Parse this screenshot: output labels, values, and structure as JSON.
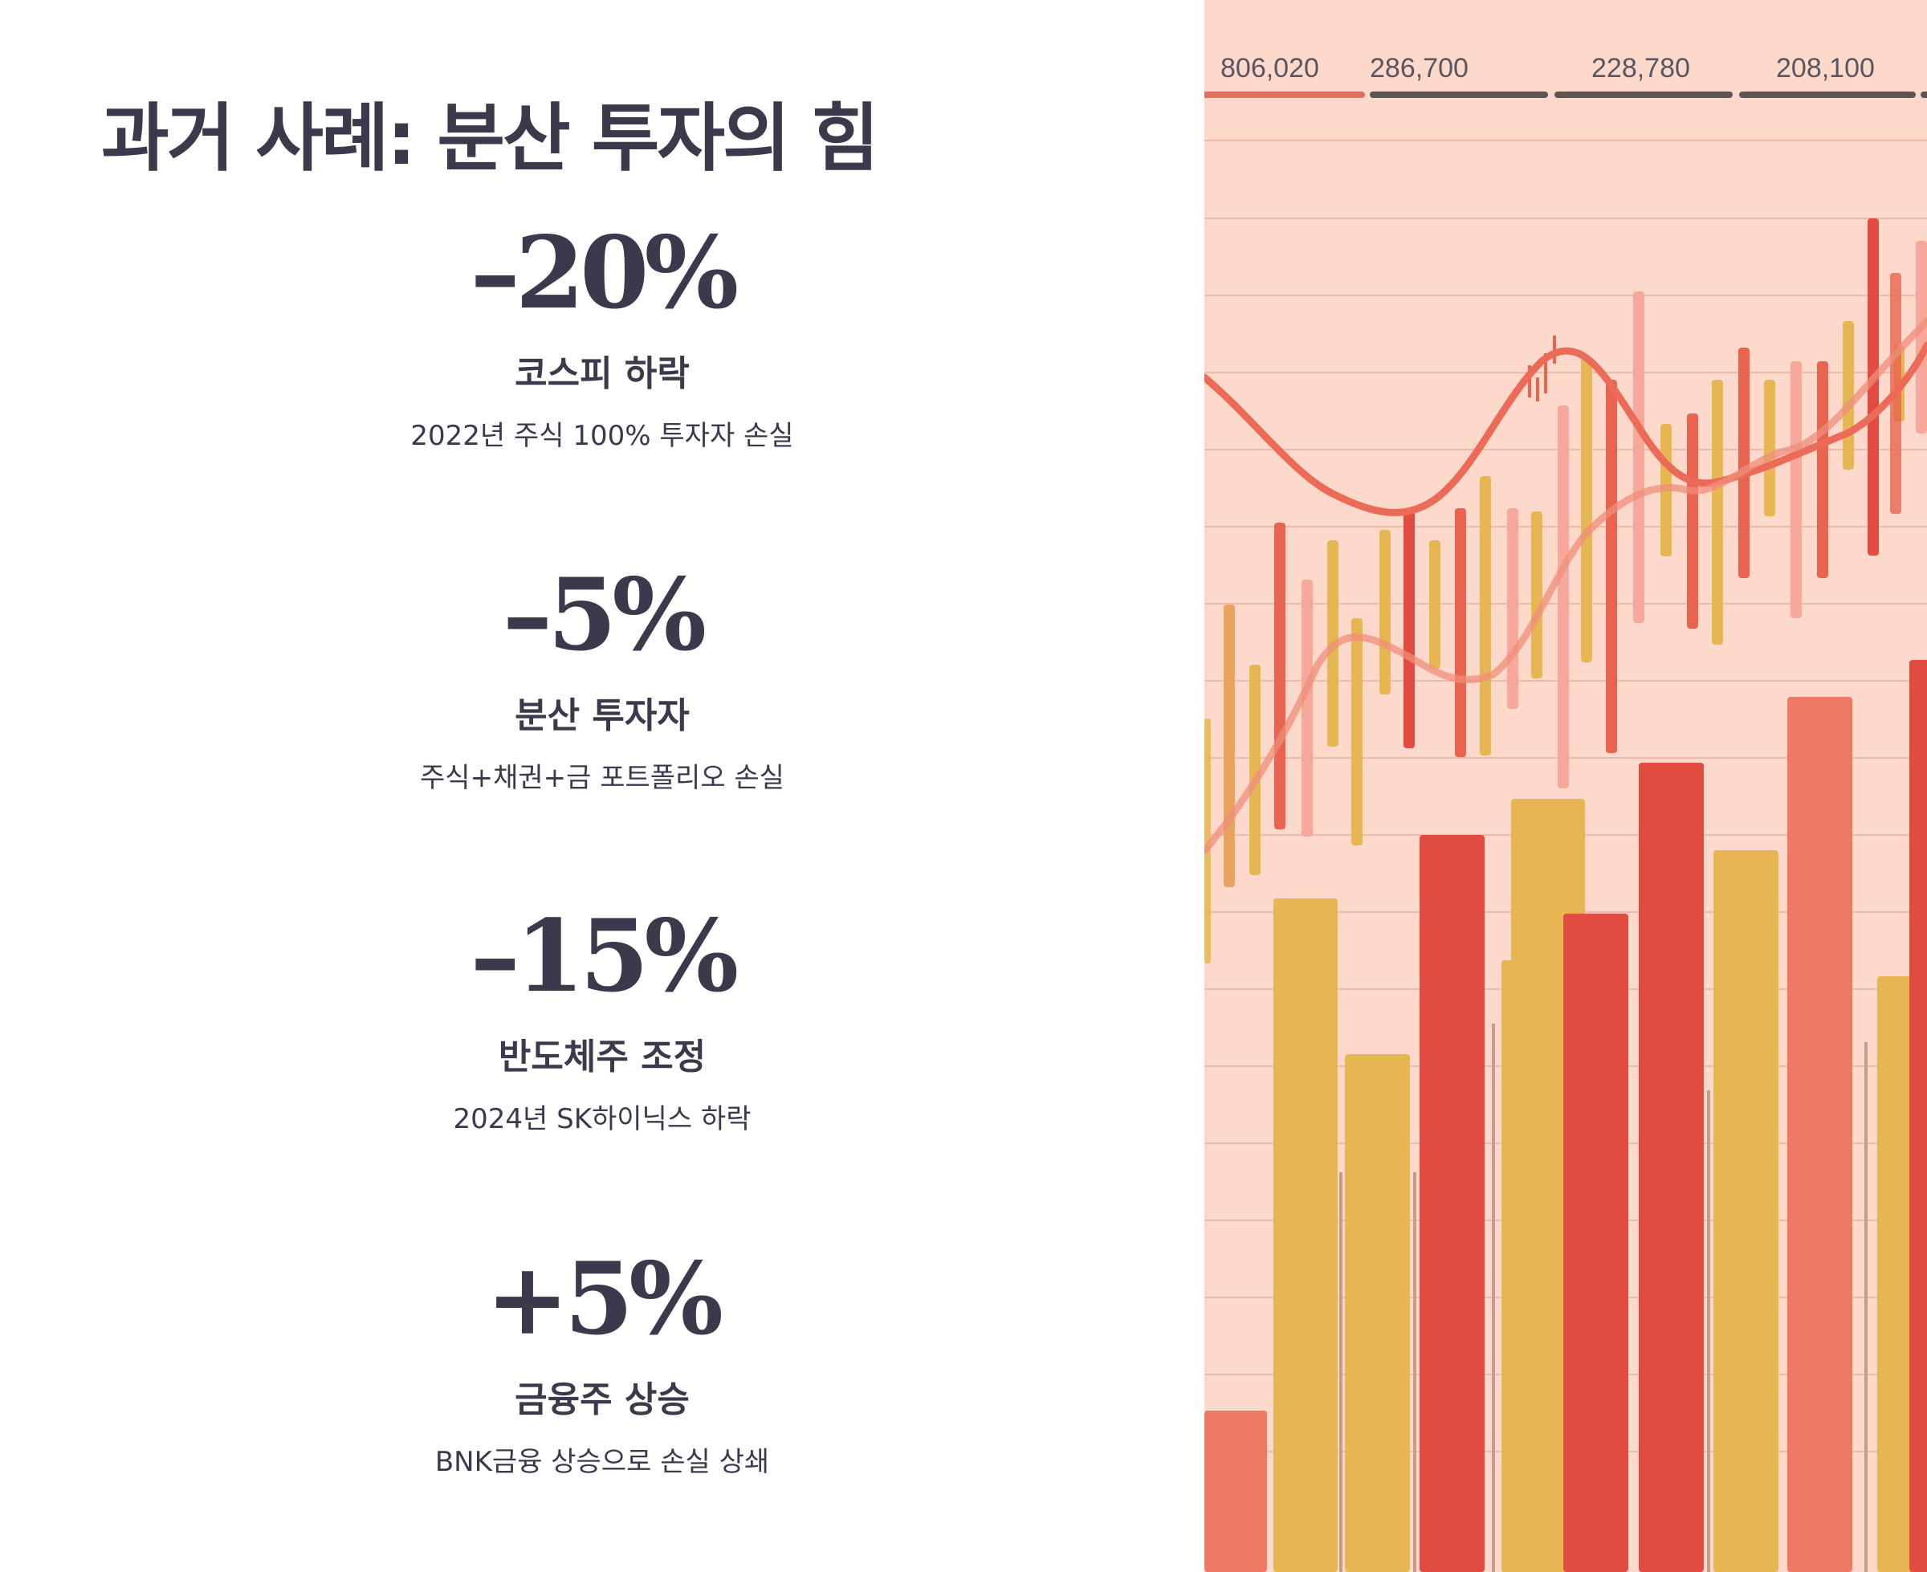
{
  "slide": {
    "title": "과거 사례: 분산 투자의 힘"
  },
  "stats": [
    {
      "value": "–20%",
      "label": "코스피 하락",
      "description": "2022년 주식 100% 투자자 손실"
    },
    {
      "value": "–5%",
      "label": "분산 투자자",
      "description": "주식+채권+금 포트폴리오 손실"
    },
    {
      "value": "–15%",
      "label": "반도체주 조정",
      "description": "2024년 SK하이닉스 하락"
    },
    {
      "value": "+5%",
      "label": "금융주 상승",
      "description": "BNK금융 상승으로 손실 상쇄"
    }
  ],
  "image": {
    "top_labels": [
      "806,020",
      "286,700",
      "228,780",
      "208,100"
    ],
    "colors": {
      "background": "#fdd9cc",
      "red": "#e24b3f",
      "salmon": "#ee7a63",
      "gold": "#e6b653",
      "line": "#ec6b58",
      "text": "#3b3a4d"
    }
  }
}
